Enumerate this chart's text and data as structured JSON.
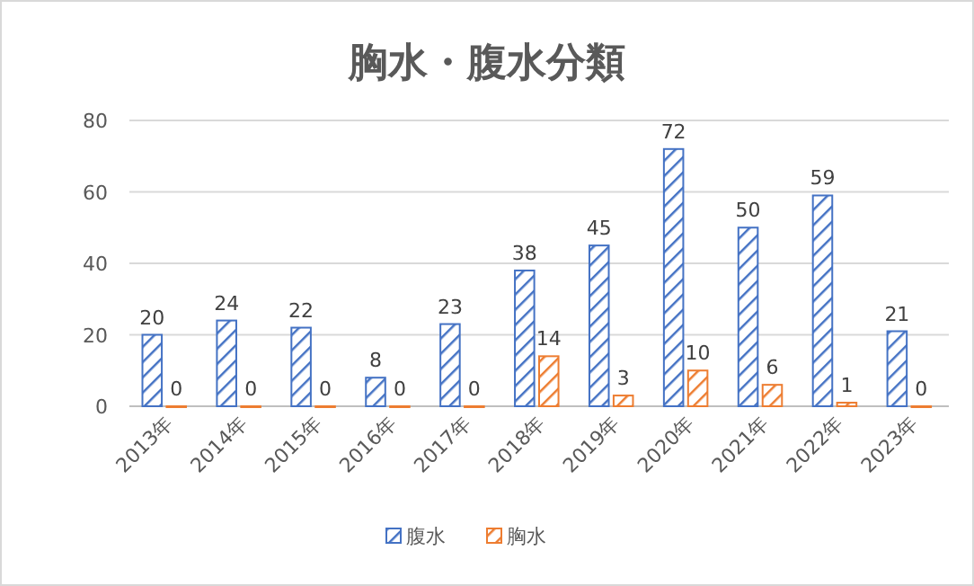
{
  "chart_data": {
    "type": "bar",
    "title": "胸水・腹水分類",
    "categories": [
      "2013年",
      "2014年",
      "2015年",
      "2016年",
      "2017年",
      "2018年",
      "2019年",
      "2020年",
      "2021年",
      "2022年",
      "2023年"
    ],
    "series": [
      {
        "name": "腹水",
        "color": "#4472c4",
        "values": [
          20,
          24,
          22,
          8,
          23,
          38,
          45,
          72,
          50,
          59,
          21
        ]
      },
      {
        "name": "胸水",
        "color": "#ed7d31",
        "values": [
          0,
          0,
          0,
          0,
          0,
          14,
          3,
          10,
          6,
          1,
          0
        ]
      }
    ],
    "ylim": [
      0,
      80
    ],
    "yticks": [
      0,
      20,
      40,
      60,
      80
    ],
    "grid": "y",
    "legend": "bottom",
    "data_labels": true
  }
}
